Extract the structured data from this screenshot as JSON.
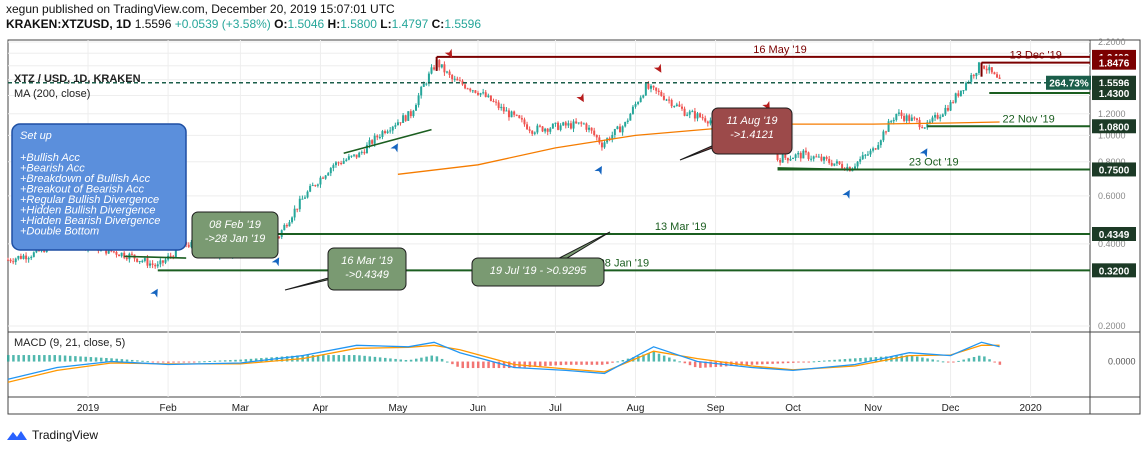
{
  "header": {
    "publisher_line": "xegun published on TradingView.com, December 20, 2019 15:07:01 UTC",
    "symbol": "KRAKEN:XTZUSD, 1D",
    "last": "1.5596",
    "change": "+0.0539 (+3.58%)",
    "o_label": "O:",
    "o_val": "1.5046",
    "h_label": "H:",
    "h_val": "1.5800",
    "l_label": "L:",
    "l_val": "1.4797",
    "c_label": "C:",
    "c_val": "1.5596"
  },
  "footer": {
    "brand": "TradingView"
  },
  "colors": {
    "up": "#26a69a",
    "down": "#ef5350",
    "ma": "#f57c00",
    "macd": "#2196f3",
    "signal": "#ff9800",
    "resist": "#7b0000",
    "support": "#1b5e20",
    "price_tag": "#1b5e4a",
    "callout_green": "#7a9a72",
    "callout_red": "#9c4a4a",
    "setup_box": "#5b8fdc"
  },
  "chart_data": {
    "type": "candlestick",
    "title": "XTZ / USD, 1D, KRAKEN",
    "indicator": "MA (200, close)",
    "y_scale": "log",
    "ylim": [
      0.2,
      2.2
    ],
    "y_ticks": [
      "2.2000",
      "2.0000",
      "1.8000",
      "1.6000",
      "1.4000",
      "1.2000",
      "1.0000",
      "0.8000",
      "0.6000",
      "0.4000",
      "0.2000"
    ],
    "x_ticks": [
      "2019",
      "Feb",
      "Mar",
      "Apr",
      "May",
      "Jun",
      "Jul",
      "Aug",
      "Sep",
      "Oct",
      "Nov",
      "Dec",
      "2020"
    ],
    "x_tick_dates": [
      "2019-01-01",
      "2019-02-01",
      "2019-03-01",
      "2019-04-01",
      "2019-05-01",
      "2019-06-01",
      "2019-07-01",
      "2019-08-01",
      "2019-09-01",
      "2019-10-01",
      "2019-11-01",
      "2019-12-01",
      "2020-01-01"
    ],
    "x_start": "2018-12-01",
    "x_end": "2020-01-24",
    "close_path": [
      [
        "2018-12-01",
        0.35
      ],
      [
        "2018-12-12",
        0.37
      ],
      [
        "2018-12-22",
        0.42
      ],
      [
        "2018-12-30",
        0.4
      ],
      [
        "2019-01-08",
        0.38
      ],
      [
        "2019-01-18",
        0.36
      ],
      [
        "2019-01-28",
        0.33
      ],
      [
        "2019-02-08",
        0.4
      ],
      [
        "2019-02-20",
        0.37
      ],
      [
        "2019-03-05",
        0.38
      ],
      [
        "2019-03-16",
        0.43
      ],
      [
        "2019-03-26",
        0.6
      ],
      [
        "2019-04-06",
        0.78
      ],
      [
        "2019-04-16",
        0.85
      ],
      [
        "2019-04-26",
        1.05
      ],
      [
        "2019-05-06",
        1.2
      ],
      [
        "2019-05-16",
        1.85
      ],
      [
        "2019-05-22",
        1.6
      ],
      [
        "2019-06-01",
        1.45
      ],
      [
        "2019-06-10",
        1.25
      ],
      [
        "2019-06-22",
        1.05
      ],
      [
        "2019-07-02",
        1.08
      ],
      [
        "2019-07-12",
        1.1
      ],
      [
        "2019-07-19",
        0.93
      ],
      [
        "2019-07-28",
        1.1
      ],
      [
        "2019-08-05",
        1.5
      ],
      [
        "2019-08-11",
        1.41
      ],
      [
        "2019-08-20",
        1.22
      ],
      [
        "2019-09-01",
        1.12
      ],
      [
        "2019-09-12",
        1.02
      ],
      [
        "2019-09-22",
        1.03
      ],
      [
        "2019-09-25",
        0.82
      ],
      [
        "2019-10-05",
        0.85
      ],
      [
        "2019-10-15",
        0.8
      ],
      [
        "2019-10-23",
        0.76
      ],
      [
        "2019-11-01",
        0.88
      ],
      [
        "2019-11-10",
        1.2
      ],
      [
        "2019-11-22",
        1.08
      ],
      [
        "2019-12-01",
        1.3
      ],
      [
        "2019-12-08",
        1.6
      ],
      [
        "2019-12-13",
        1.84
      ],
      [
        "2019-12-20",
        1.5596
      ]
    ],
    "ma200": [
      [
        "2019-05-01",
        0.72
      ],
      [
        "2019-06-01",
        0.78
      ],
      [
        "2019-07-01",
        0.9
      ],
      [
        "2019-08-01",
        1.0
      ],
      [
        "2019-09-01",
        1.06
      ],
      [
        "2019-10-01",
        1.1
      ],
      [
        "2019-11-01",
        1.1
      ],
      [
        "2019-12-01",
        1.11
      ],
      [
        "2019-12-20",
        1.12
      ]
    ],
    "levels": [
      {
        "value": 1.94,
        "label": "1.9400",
        "kind": "resist",
        "text": "16 May '19",
        "from": "2019-05-16"
      },
      {
        "value": 1.8476,
        "label": "1.8476",
        "kind": "resist",
        "text": "13 Dec '19",
        "from": "2019-12-13"
      },
      {
        "value": 1.5596,
        "label": "1.5596",
        "pct": "264.73%",
        "kind": "current",
        "from": "2018-12-01"
      },
      {
        "value": 1.43,
        "label": "1.4300",
        "kind": "support",
        "text": "",
        "from": "2019-12-16"
      },
      {
        "value": 1.08,
        "label": "1.0800",
        "kind": "support",
        "text": "22 Nov '19",
        "from": "2019-11-22"
      },
      {
        "value": 0.75,
        "label": "0.7500",
        "kind": "support",
        "text": "23 Oct '19",
        "from": "2019-09-25"
      },
      {
        "value": 0.4349,
        "label": "0.4349",
        "kind": "support",
        "text": "13 Mar '19",
        "from": "2019-03-13"
      },
      {
        "value": 0.32,
        "label": "0.3200",
        "kind": "support",
        "text": "28 Jan '19",
        "from": "2019-01-28"
      }
    ],
    "trendlines": [
      {
        "kind": "support",
        "from": [
          "2019-04-10",
          0.86
        ],
        "to": [
          "2019-05-14",
          1.05
        ]
      },
      {
        "kind": "resist",
        "from": [
          "2019-09-05",
          1.18
        ],
        "to": [
          "2019-09-30",
          1.08
        ]
      },
      {
        "kind": "support",
        "from": [
          "2019-09-25",
          0.76
        ],
        "to": [
          "2019-10-23",
          0.75
        ]
      },
      {
        "kind": "support",
        "from": [
          "2019-01-15",
          0.36
        ],
        "to": [
          "2019-02-08",
          0.355
        ]
      }
    ],
    "callouts": [
      {
        "text": "08 Feb '19\n->28 Jan '19",
        "kind": "green"
      },
      {
        "text": "16 Mar '19\n->0.4349",
        "kind": "green"
      },
      {
        "text": "19 Jul '19 - >0.9295",
        "kind": "green"
      },
      {
        "text": "11 Aug '19\n->1.4121",
        "kind": "red"
      }
    ],
    "setup_box": {
      "title": "Set up",
      "items": [
        "+Bullish Acc",
        "+Bearish Acc",
        "+Breakdown of Bullish Acc",
        "+Breakout of Bearish Acc",
        "+Regular Bullish Divergence",
        "+Hidden Bullish Divergence",
        "+Hidden Bearish Divergence",
        "+Double Bottom"
      ]
    },
    "bullish_arrows": [
      "2019-01-28",
      "2019-03-16",
      "2019-05-01",
      "2019-07-19",
      "2019-10-23",
      "2019-11-22"
    ],
    "bearish_arrows": [
      "2018-12-30",
      "2019-05-22",
      "2019-07-12",
      "2019-08-11",
      "2019-09-22"
    ],
    "macd": {
      "title": "MACD (9, 21, close, 5)",
      "ylim": [
        -0.12,
        0.1
      ],
      "zero_label": "0.0000",
      "macd_line": [
        [
          "2018-12-01",
          -0.06
        ],
        [
          "2018-12-20",
          -0.02
        ],
        [
          "2019-01-10",
          0.0
        ],
        [
          "2019-02-01",
          -0.01
        ],
        [
          "2019-03-01",
          -0.005
        ],
        [
          "2019-03-25",
          0.02
        ],
        [
          "2019-04-15",
          0.055
        ],
        [
          "2019-05-05",
          0.05
        ],
        [
          "2019-05-15",
          0.065
        ],
        [
          "2019-05-25",
          0.03
        ],
        [
          "2019-06-15",
          -0.02
        ],
        [
          "2019-07-05",
          -0.03
        ],
        [
          "2019-07-20",
          -0.04
        ],
        [
          "2019-08-08",
          0.05
        ],
        [
          "2019-08-25",
          0.0
        ],
        [
          "2019-09-15",
          -0.02
        ],
        [
          "2019-10-01",
          -0.03
        ],
        [
          "2019-10-25",
          -0.01
        ],
        [
          "2019-11-15",
          0.03
        ],
        [
          "2019-12-01",
          0.02
        ],
        [
          "2019-12-13",
          0.065
        ],
        [
          "2019-12-20",
          0.05
        ]
      ],
      "signal_line": [
        [
          "2018-12-01",
          -0.07
        ],
        [
          "2018-12-20",
          -0.03
        ],
        [
          "2019-01-10",
          -0.005
        ],
        [
          "2019-02-01",
          -0.008
        ],
        [
          "2019-03-01",
          -0.008
        ],
        [
          "2019-03-25",
          0.01
        ],
        [
          "2019-04-15",
          0.045
        ],
        [
          "2019-05-05",
          0.048
        ],
        [
          "2019-05-15",
          0.055
        ],
        [
          "2019-05-25",
          0.04
        ],
        [
          "2019-06-15",
          -0.01
        ],
        [
          "2019-07-05",
          -0.025
        ],
        [
          "2019-07-20",
          -0.035
        ],
        [
          "2019-08-08",
          0.035
        ],
        [
          "2019-08-25",
          0.01
        ],
        [
          "2019-09-15",
          -0.015
        ],
        [
          "2019-10-01",
          -0.028
        ],
        [
          "2019-10-25",
          -0.015
        ],
        [
          "2019-11-15",
          0.02
        ],
        [
          "2019-12-01",
          0.022
        ],
        [
          "2019-12-13",
          0.055
        ],
        [
          "2019-12-20",
          0.055
        ]
      ]
    }
  }
}
